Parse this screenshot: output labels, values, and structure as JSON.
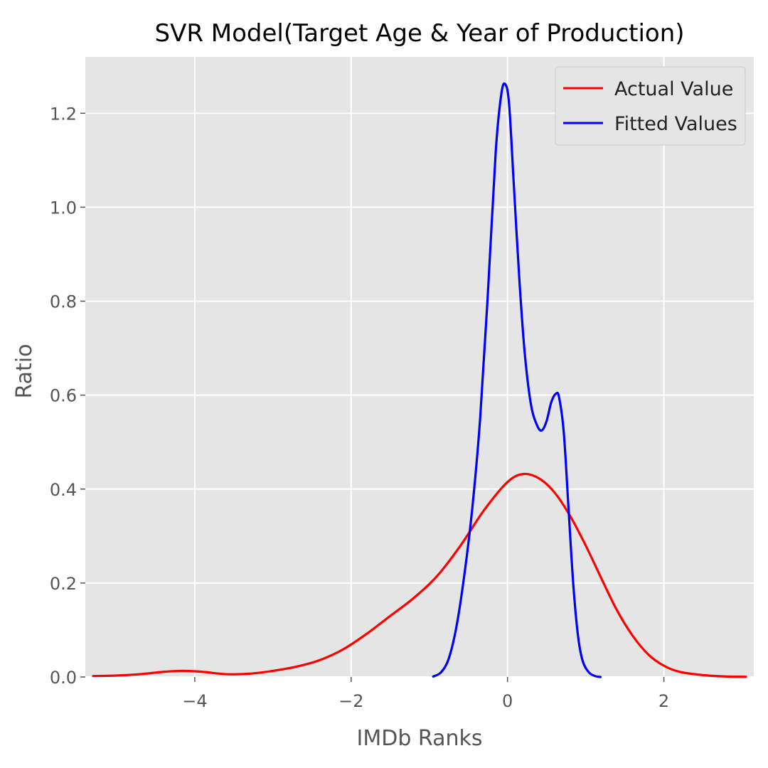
{
  "chart_data": {
    "type": "line",
    "title": "SVR Model(Target Age & Year of Production)",
    "xlabel": "IMDb Ranks",
    "ylabel": "Ratio",
    "xlim": [
      -5.4,
      3.15
    ],
    "ylim": [
      0.0,
      1.32
    ],
    "xticks": [
      -4,
      -2,
      0,
      2
    ],
    "xtick_labels": [
      "−4",
      "−2",
      "0",
      "2"
    ],
    "yticks": [
      0.0,
      0.2,
      0.4,
      0.6,
      0.8,
      1.0,
      1.2
    ],
    "ytick_labels": [
      "0.0",
      "0.2",
      "0.4",
      "0.6",
      "0.8",
      "1.0",
      "1.2"
    ],
    "grid": true,
    "legend_position": "top-right",
    "series": [
      {
        "name": "Actual Value",
        "color": "#ff0000",
        "x": [
          -5.3,
          -5.0,
          -4.7,
          -4.4,
          -4.15,
          -3.9,
          -3.6,
          -3.3,
          -3.0,
          -2.7,
          -2.4,
          -2.1,
          -1.8,
          -1.5,
          -1.2,
          -0.9,
          -0.6,
          -0.3,
          0.0,
          0.2,
          0.4,
          0.6,
          0.8,
          1.0,
          1.2,
          1.4,
          1.6,
          1.8,
          2.0,
          2.2,
          2.5,
          2.8,
          3.05
        ],
        "y": [
          0.002,
          0.003,
          0.006,
          0.011,
          0.013,
          0.011,
          0.006,
          0.007,
          0.013,
          0.022,
          0.036,
          0.059,
          0.092,
          0.13,
          0.168,
          0.215,
          0.28,
          0.355,
          0.415,
          0.432,
          0.423,
          0.393,
          0.343,
          0.28,
          0.21,
          0.142,
          0.088,
          0.048,
          0.024,
          0.011,
          0.004,
          0.001,
          0.0005
        ]
      },
      {
        "name": "Fitted Values",
        "color": "#0000ff",
        "x": [
          -0.95,
          -0.85,
          -0.75,
          -0.65,
          -0.55,
          -0.45,
          -0.35,
          -0.25,
          -0.15,
          -0.08,
          -0.03,
          0.02,
          0.08,
          0.15,
          0.22,
          0.3,
          0.38,
          0.44,
          0.5,
          0.56,
          0.62,
          0.66,
          0.72,
          0.78,
          0.84,
          0.9,
          0.96,
          1.04,
          1.12,
          1.19
        ],
        "y": [
          0.001,
          0.01,
          0.04,
          0.11,
          0.22,
          0.36,
          0.55,
          0.82,
          1.12,
          1.24,
          1.262,
          1.22,
          1.05,
          0.85,
          0.69,
          0.58,
          0.535,
          0.525,
          0.545,
          0.585,
          0.603,
          0.595,
          0.52,
          0.36,
          0.2,
          0.09,
          0.035,
          0.01,
          0.002,
          0.0
        ]
      }
    ]
  }
}
